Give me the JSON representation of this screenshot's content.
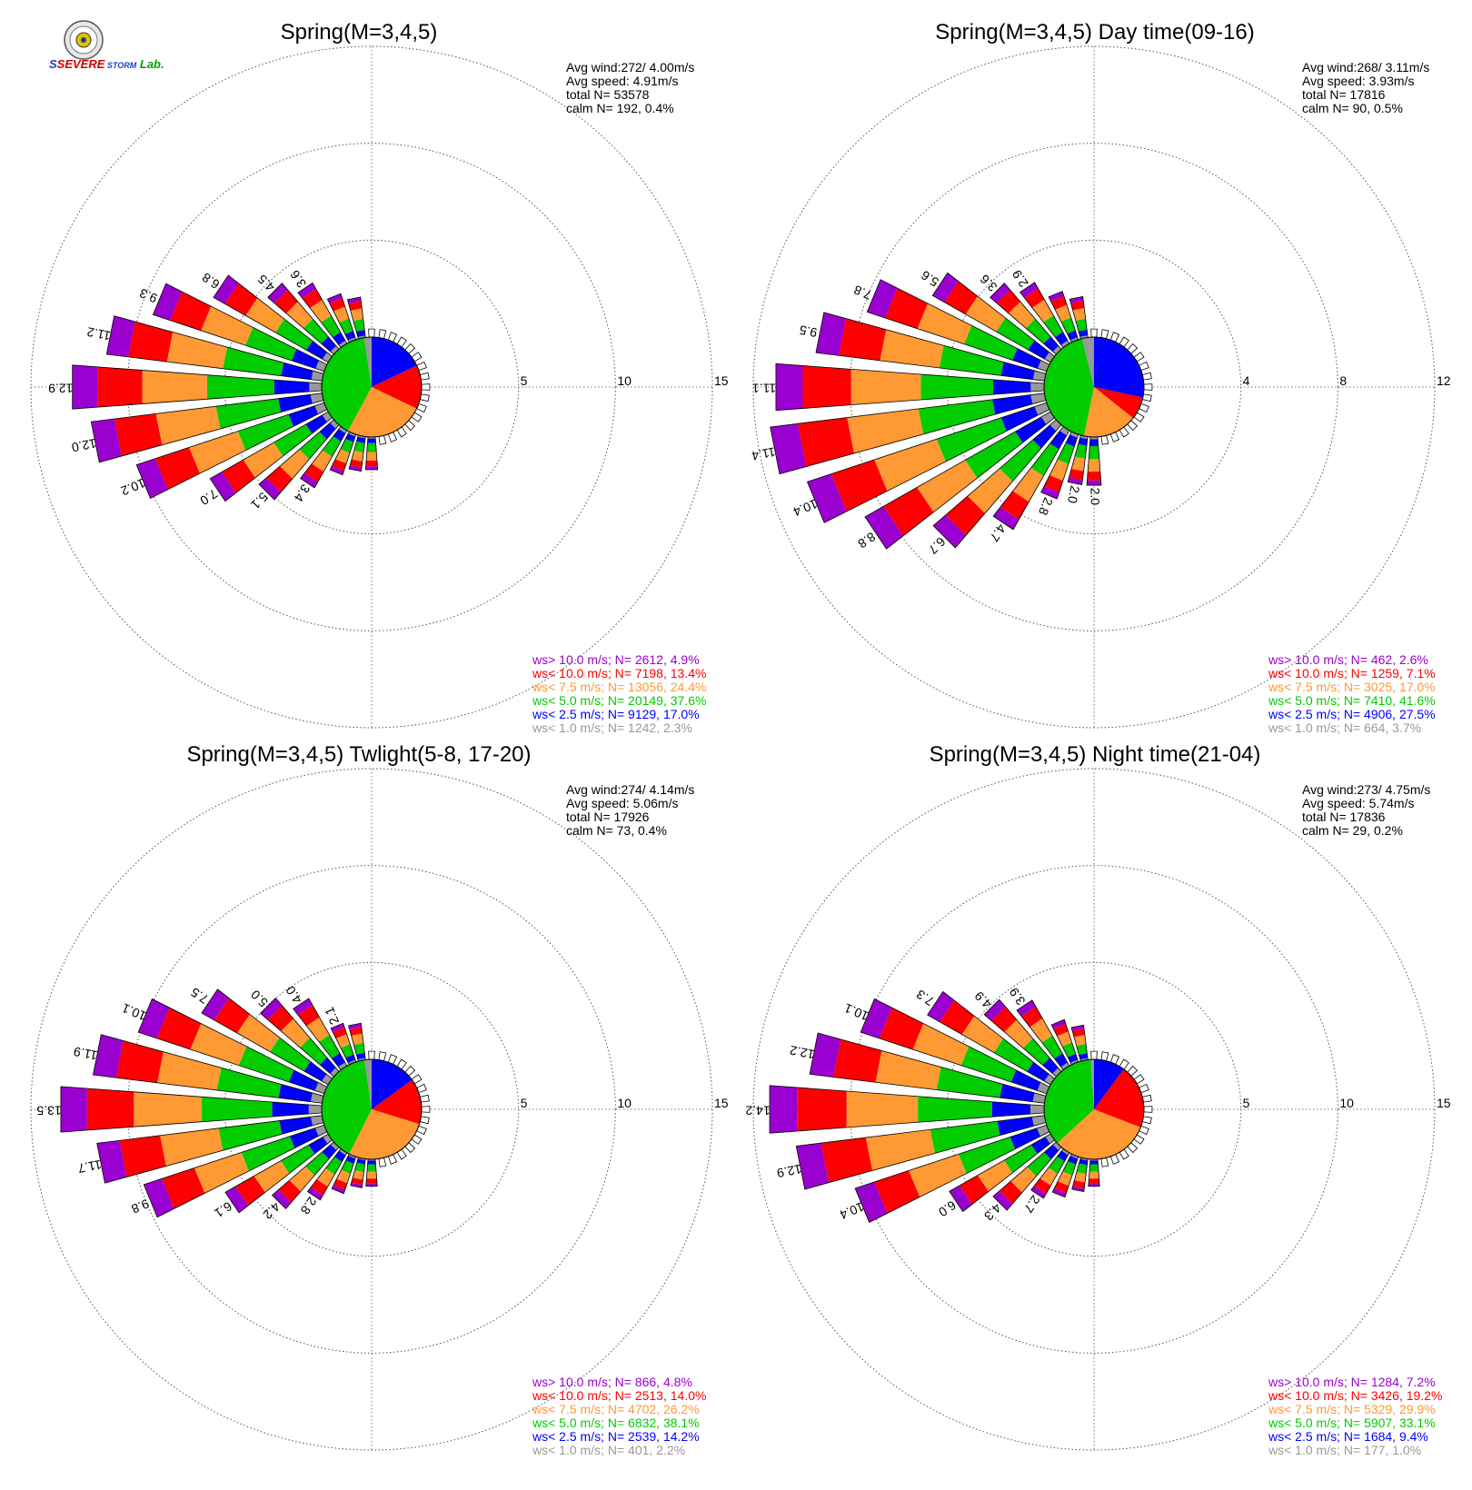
{
  "colors": {
    "ws_gt10": "#9a00d0",
    "ws_lt10": "#ff0000",
    "ws_lt7_5": "#ff9933",
    "ws_lt5": "#00cc00",
    "ws_lt2_5": "#0000ff",
    "ws_lt1": "#999999"
  },
  "logo": {
    "text": "SSEVERE STORM Lab.",
    "icon": "lab-seal-icon"
  },
  "chart_data": [
    {
      "type": "wind-rose",
      "title": "Spring(M=3,4,5)",
      "stats": [
        "Avg wind:272/ 4.00m/s",
        "Avg speed: 4.91m/s",
        "total N=     53578",
        "calm N=    192,   0.4%"
      ],
      "rmax": 15,
      "ticks": [
        "5",
        "10",
        "15"
      ],
      "tick_values": [
        5,
        10,
        15
      ],
      "petals": [
        {
          "dir": 292.5,
          "value": 9.3,
          "label": "9.3"
        },
        {
          "dir": 281.25,
          "value": 11.2,
          "label": "11.2"
        },
        {
          "dir": 270,
          "value": 12.9,
          "label": "12.9"
        },
        {
          "dir": 258.75,
          "value": 12.0,
          "label": "12.0"
        },
        {
          "dir": 247.5,
          "value": 10.2,
          "label": "10.2"
        },
        {
          "dir": 303.75,
          "value": 6.8,
          "label": "6.8"
        },
        {
          "dir": 236.25,
          "value": 7.0,
          "label": "7.0"
        },
        {
          "dir": 315,
          "value": 4.5,
          "label": "4.5"
        },
        {
          "dir": 225,
          "value": 5.1,
          "label": "5.1"
        },
        {
          "dir": 326.25,
          "value": 3.6,
          "label": "3.6"
        },
        {
          "dir": 213.75,
          "value": 3.4,
          "label": "3.4"
        },
        {
          "dir": 337.5,
          "value": 2.5
        },
        {
          "dir": 348.75,
          "value": 2.1
        },
        {
          "dir": 202.5,
          "value": 2.2
        },
        {
          "dir": 191.25,
          "value": 1.8
        },
        {
          "dir": 180,
          "value": 1.7
        }
      ],
      "pie": [
        17.0,
        13.4,
        24.4,
        37.6,
        2.3
      ],
      "legend": [
        "ws> 10.0 m/s; N=  2612,  4.9%",
        "ws< 10.0 m/s; N=  7198, 13.4%",
        "ws<  7.5 m/s; N= 13056, 24.4%",
        "ws<  5.0 m/s; N= 20149, 37.6%",
        "ws<  2.5 m/s; N=  9129, 17.0%",
        "ws<  1.0 m/s; N=  1242,  2.3%"
      ]
    },
    {
      "type": "wind-rose",
      "title": "Spring(M=3,4,5) Day time(09-16)",
      "stats": [
        "Avg wind:268/ 3.11m/s",
        "Avg speed: 3.93m/s",
        "total N=     17816",
        "calm N=     90,   0.5%"
      ],
      "rmax": 12,
      "ticks": [
        "4",
        "8",
        "12"
      ],
      "tick_values": [
        4,
        8,
        12
      ],
      "petals": [
        {
          "dir": 292.5,
          "value": 7.8,
          "label": "7.8"
        },
        {
          "dir": 281.25,
          "value": 9.5,
          "label": "9.5"
        },
        {
          "dir": 270,
          "value": 11.1,
          "label": "11.1"
        },
        {
          "dir": 258.75,
          "value": 11.4,
          "label": "11.4"
        },
        {
          "dir": 247.5,
          "value": 10.4,
          "label": "10.4"
        },
        {
          "dir": 236.25,
          "value": 8.8,
          "label": "8.8"
        },
        {
          "dir": 225,
          "value": 6.7,
          "label": "6.7"
        },
        {
          "dir": 213.75,
          "value": 4.7,
          "label": "4.7"
        },
        {
          "dir": 202.5,
          "value": 2.8,
          "label": "2.8"
        },
        {
          "dir": 191.25,
          "value": 2.0,
          "label": "2.0"
        },
        {
          "dir": 180,
          "value": 2.0,
          "label": "2.0"
        },
        {
          "dir": 303.75,
          "value": 5.6,
          "label": "5.6"
        },
        {
          "dir": 315,
          "value": 3.6,
          "label": "3.6"
        },
        {
          "dir": 326.25,
          "value": 2.9,
          "label": "2.9"
        },
        {
          "dir": 337.5,
          "value": 2.1
        },
        {
          "dir": 348.75,
          "value": 1.7
        }
      ],
      "pie": [
        27.5,
        7.1,
        17.0,
        41.6,
        3.7
      ],
      "legend": [
        "ws> 10.0 m/s; N=   462,  2.6%",
        "ws< 10.0 m/s; N=  1259,  7.1%",
        "ws<  7.5 m/s; N=  3025, 17.0%",
        "ws<  5.0 m/s; N=  7410, 41.6%",
        "ws<  2.5 m/s; N=  4906, 27.5%",
        "ws<  1.0 m/s; N=   664,  3.7%"
      ]
    },
    {
      "type": "wind-rose",
      "title": "Spring(M=3,4,5) Twlight(5-8, 17-20)",
      "stats": [
        "Avg wind:274/ 4.14m/s",
        "Avg speed: 5.06m/s",
        "total N=     17926",
        "calm N=     73,   0.4%"
      ],
      "rmax": 15,
      "ticks": [
        "5",
        "10",
        "15"
      ],
      "tick_values": [
        5,
        10,
        15
      ],
      "petals": [
        {
          "dir": 292.5,
          "value": 10.1,
          "label": "10.1"
        },
        {
          "dir": 281.25,
          "value": 11.9,
          "label": "11.9"
        },
        {
          "dir": 270,
          "value": 13.5,
          "label": "13.5"
        },
        {
          "dir": 258.75,
          "value": 11.7,
          "label": "11.7"
        },
        {
          "dir": 247.5,
          "value": 9.8,
          "label": "9.8"
        },
        {
          "dir": 303.75,
          "value": 7.5,
          "label": "7.5"
        },
        {
          "dir": 236.25,
          "value": 6.1,
          "label": "6.1"
        },
        {
          "dir": 315,
          "value": 5.0,
          "label": "5.0"
        },
        {
          "dir": 225,
          "value": 4.2,
          "label": "4.2"
        },
        {
          "dir": 326.25,
          "value": 4.0,
          "label": "4.0"
        },
        {
          "dir": 213.75,
          "value": 2.8,
          "label": "2.8"
        },
        {
          "dir": 337.5,
          "value": 2.1,
          "label": "2.1"
        },
        {
          "dir": 348.75,
          "value": 1.9
        },
        {
          "dir": 202.5,
          "value": 2.0
        },
        {
          "dir": 191.25,
          "value": 1.5
        },
        {
          "dir": 180,
          "value": 1.4
        }
      ],
      "pie": [
        14.2,
        14.0,
        26.2,
        38.1,
        2.2
      ],
      "legend": [
        "ws> 10.0 m/s; N=   866,  4.8%",
        "ws< 10.0 m/s; N=  2513, 14.0%",
        "ws<  7.5 m/s; N=  4702, 26.2%",
        "ws<  5.0 m/s; N=  6832, 38.1%",
        "ws<  2.5 m/s; N=  2539, 14.2%",
        "ws<  1.0 m/s; N=   401,  2.2%"
      ]
    },
    {
      "type": "wind-rose",
      "title": "Spring(M=3,4,5) Night time(21-04)",
      "stats": [
        "Avg wind:273/ 4.75m/s",
        "Avg speed: 5.74m/s",
        "total N=     17836",
        "calm N=     29,   0.2%"
      ],
      "rmax": 15,
      "ticks": [
        "5",
        "10",
        "15"
      ],
      "tick_values": [
        5,
        10,
        15
      ],
      "petals": [
        {
          "dir": 292.5,
          "value": 10.1,
          "label": "10.1"
        },
        {
          "dir": 281.25,
          "value": 12.2,
          "label": "12.2"
        },
        {
          "dir": 270,
          "value": 14.2,
          "label": "14.2"
        },
        {
          "dir": 258.75,
          "value": 12.9,
          "label": "12.9"
        },
        {
          "dir": 247.5,
          "value": 10.4,
          "label": "10.4"
        },
        {
          "dir": 303.75,
          "value": 7.3,
          "label": "7.3"
        },
        {
          "dir": 236.25,
          "value": 6.0,
          "label": "6.0"
        },
        {
          "dir": 315,
          "value": 4.9,
          "label": "4.9"
        },
        {
          "dir": 225,
          "value": 4.3,
          "label": "4.3"
        },
        {
          "dir": 326.25,
          "value": 3.9,
          "label": "3.9"
        },
        {
          "dir": 213.75,
          "value": 2.7,
          "label": "2.7"
        },
        {
          "dir": 337.5,
          "value": 2.3
        },
        {
          "dir": 348.75,
          "value": 1.8
        },
        {
          "dir": 202.5,
          "value": 2.2
        },
        {
          "dir": 191.25,
          "value": 1.7
        },
        {
          "dir": 180,
          "value": 1.4
        }
      ],
      "pie": [
        9.4,
        19.2,
        29.9,
        33.1,
        1.0
      ],
      "legend": [
        "ws> 10.0 m/s; N=  1284,  7.2%",
        "ws< 10.0 m/s; N=  3426, 19.2%",
        "ws<  7.5 m/s; N=  5329, 29.9%",
        "ws<  5.0 m/s; N=  5907, 33.1%",
        "ws<  2.5 m/s; N=  1684,  9.4%",
        "ws<  1.0 m/s; N=   177,  1.0%"
      ]
    }
  ]
}
